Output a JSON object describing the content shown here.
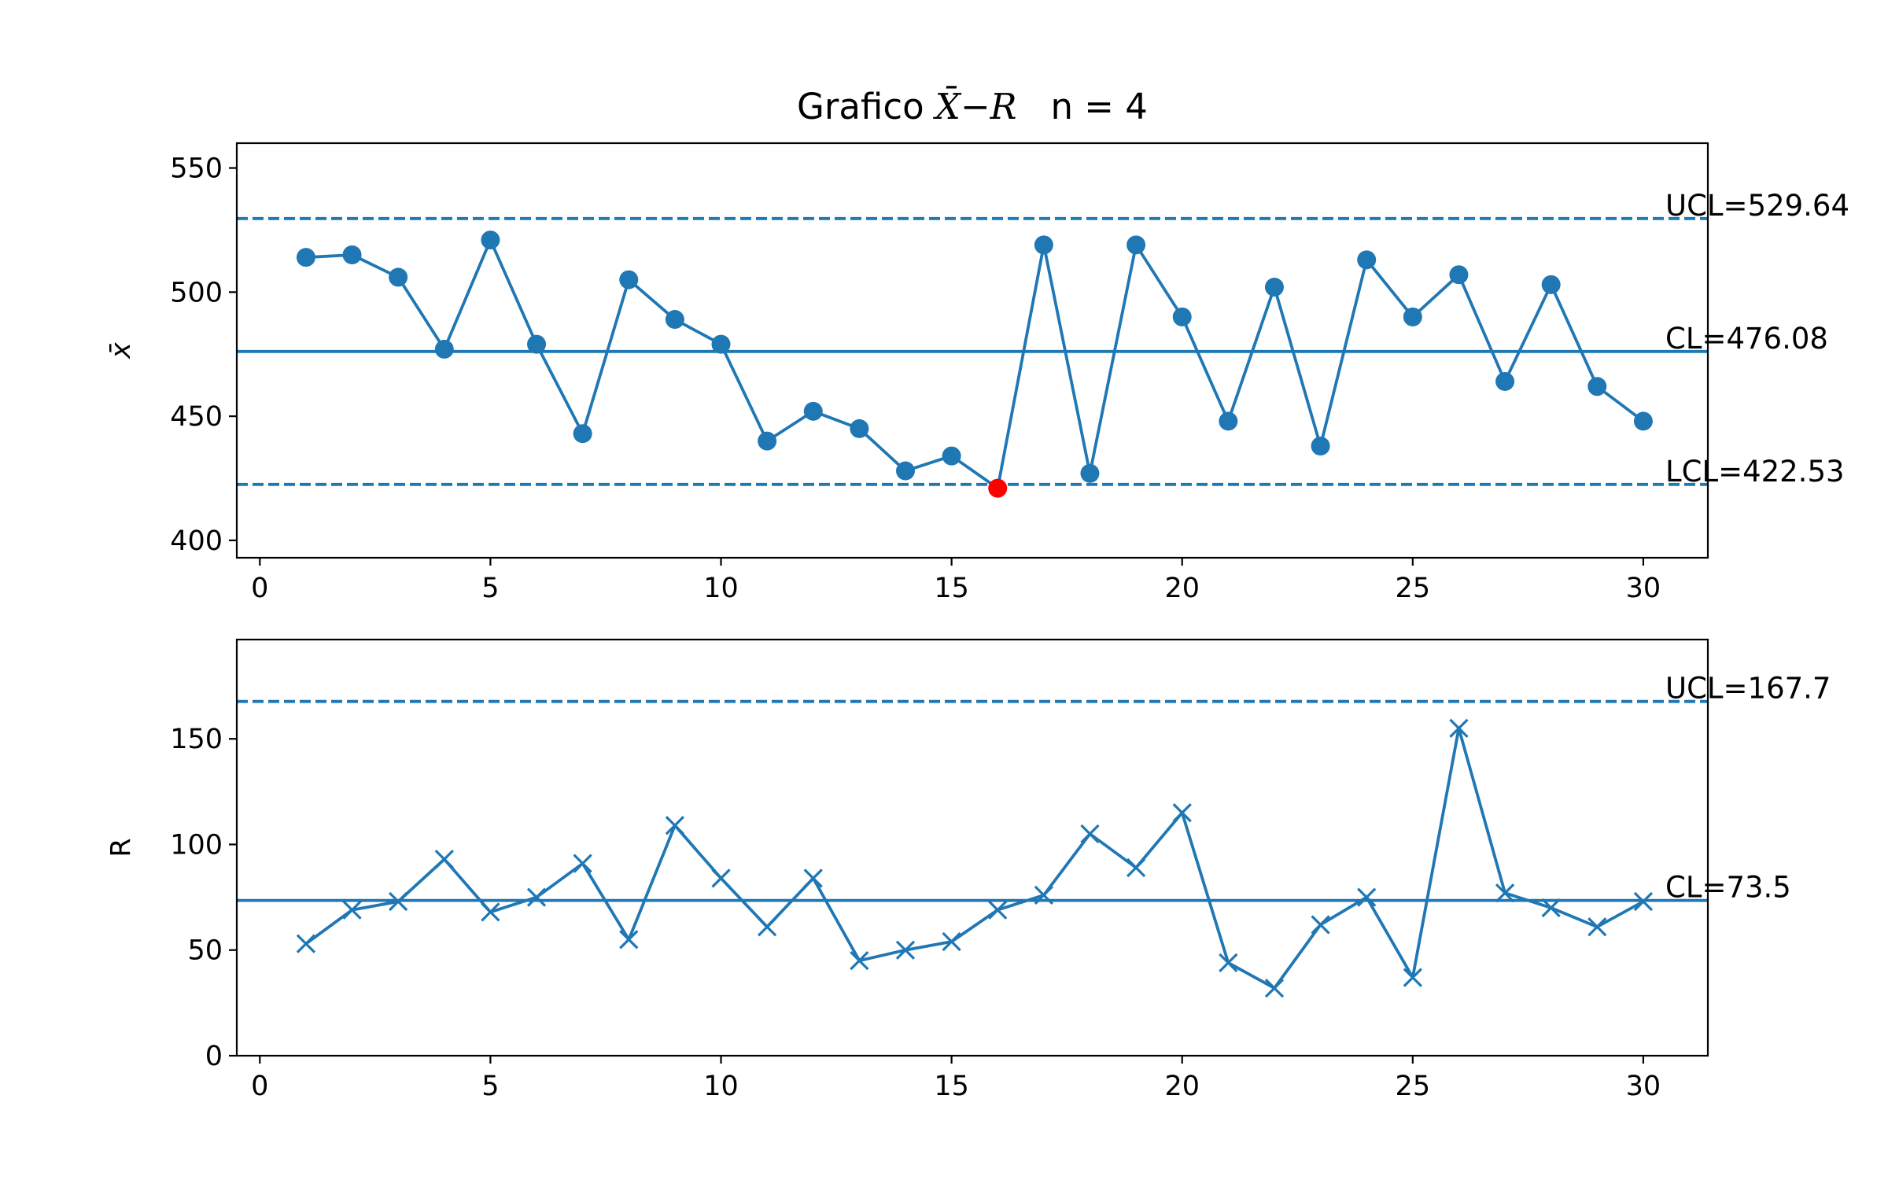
{
  "chart_data": [
    {
      "type": "line",
      "title": "Grafico X̄−R   n = 4",
      "ylabel": "x̄",
      "xlim": [
        -0.5,
        31.4
      ],
      "ylim": [
        393,
        560
      ],
      "xticks": [
        0,
        5,
        10,
        15,
        20,
        25,
        30
      ],
      "yticks": [
        400,
        450,
        500,
        550
      ],
      "grid": false,
      "x": [
        1,
        2,
        3,
        4,
        5,
        6,
        7,
        8,
        9,
        10,
        11,
        12,
        13,
        14,
        15,
        16,
        17,
        18,
        19,
        20,
        21,
        22,
        23,
        24,
        25,
        26,
        27,
        28,
        29,
        30
      ],
      "series": [
        {
          "values": [
            514,
            515,
            506,
            477,
            521,
            479,
            443,
            505,
            489,
            479,
            440,
            452,
            445,
            428,
            434,
            421,
            519,
            427,
            519,
            490,
            448,
            502,
            438,
            513,
            490,
            507,
            464,
            503,
            462,
            448
          ]
        }
      ],
      "out_of_control": [
        16
      ],
      "control_limits": [
        {
          "label": "UCL=529.64",
          "value": 529.64,
          "style": "dashed"
        },
        {
          "label": "CL=476.08",
          "value": 476.08,
          "style": "solid"
        },
        {
          "label": "LCL=422.53",
          "value": 422.53,
          "style": "dashed"
        }
      ],
      "colors": {
        "series": "#1f77b4",
        "out_of_control": "#ff0000"
      }
    },
    {
      "type": "line",
      "ylabel": "R",
      "xlim": [
        -0.5,
        31.4
      ],
      "ylim": [
        0,
        197
      ],
      "xticks": [
        0,
        5,
        10,
        15,
        20,
        25,
        30
      ],
      "yticks": [
        0,
        50,
        100,
        150
      ],
      "grid": false,
      "x": [
        1,
        2,
        3,
        4,
        5,
        6,
        7,
        8,
        9,
        10,
        11,
        12,
        13,
        14,
        15,
        16,
        17,
        18,
        19,
        20,
        21,
        22,
        23,
        24,
        25,
        26,
        27,
        28,
        29,
        30
      ],
      "series": [
        {
          "values": [
            53,
            69,
            73,
            93,
            68,
            75,
            91,
            55,
            109,
            84,
            61,
            84,
            45,
            50,
            54,
            69,
            76,
            105,
            89,
            115,
            44,
            32,
            62,
            75,
            37,
            155,
            77,
            70,
            61,
            73
          ]
        }
      ],
      "control_limits": [
        {
          "label": "UCL=167.7",
          "value": 167.7,
          "style": "dashed"
        },
        {
          "label": "CL=73.5",
          "value": 73.5,
          "style": "solid"
        }
      ],
      "colors": {
        "series": "#1f77b4"
      }
    }
  ]
}
